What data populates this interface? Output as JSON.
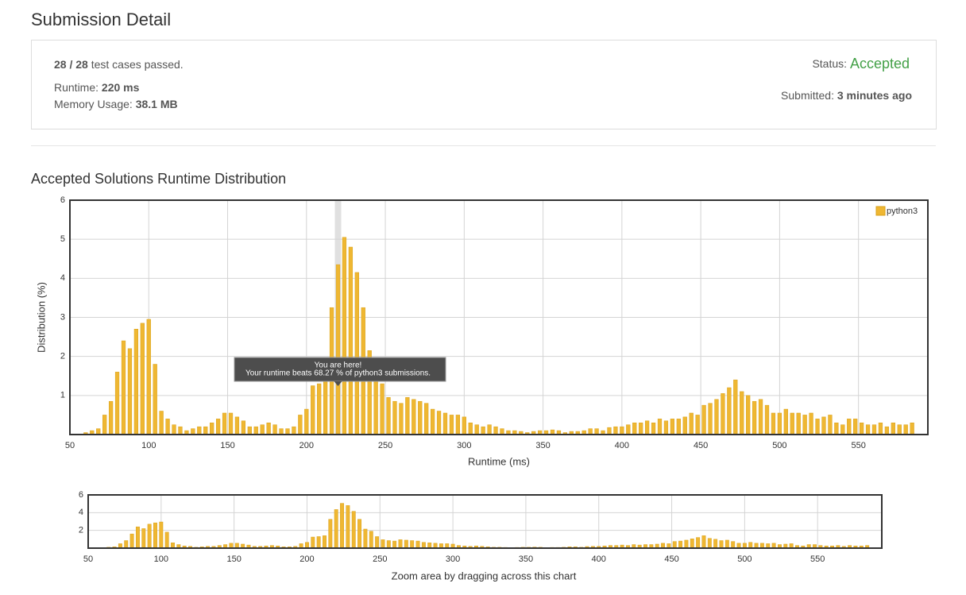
{
  "header": {
    "title": "Submission Detail"
  },
  "summary": {
    "cases": "28 / 28",
    "cases_text": "test cases passed.",
    "runtime_label": "Runtime:",
    "runtime": "220 ms",
    "memory_label": "Memory Usage:",
    "memory": "38.1 MB",
    "status_label": "Status:",
    "status": "Accepted",
    "submitted_label": "Submitted:",
    "submitted": "3 minutes ago"
  },
  "section_title": "Accepted Solutions Runtime Distribution",
  "chart_data": [
    {
      "type": "bar",
      "xlabel": "Runtime (ms)",
      "ylabel": "Distribution (%)",
      "x": [
        60,
        64,
        68,
        72,
        76,
        80,
        84,
        88,
        92,
        96,
        100,
        104,
        108,
        112,
        116,
        120,
        124,
        128,
        132,
        136,
        140,
        144,
        148,
        152,
        156,
        160,
        164,
        168,
        172,
        176,
        180,
        184,
        188,
        192,
        196,
        200,
        204,
        208,
        212,
        216,
        220,
        224,
        228,
        232,
        236,
        240,
        244,
        248,
        252,
        256,
        260,
        264,
        268,
        272,
        276,
        280,
        284,
        288,
        292,
        296,
        300,
        304,
        308,
        312,
        316,
        320,
        324,
        328,
        332,
        336,
        340,
        344,
        348,
        352,
        356,
        360,
        364,
        368,
        372,
        376,
        380,
        384,
        388,
        392,
        396,
        400,
        404,
        408,
        412,
        416,
        420,
        424,
        428,
        432,
        436,
        440,
        444,
        448,
        452,
        456,
        460,
        464,
        468,
        472,
        476,
        480,
        484,
        488,
        492,
        496,
        500,
        504,
        508,
        512,
        516,
        520,
        524,
        528,
        532,
        536,
        540,
        544,
        548,
        552,
        556,
        560,
        564,
        568,
        572,
        576,
        580,
        584
      ],
      "series": [
        {
          "name": "python3",
          "color": "#efb732",
          "values": [
            0.05,
            0.1,
            0.15,
            0.5,
            0.85,
            1.6,
            2.4,
            2.2,
            2.7,
            2.85,
            2.95,
            1.8,
            0.6,
            0.4,
            0.25,
            0.2,
            0.1,
            0.15,
            0.2,
            0.2,
            0.3,
            0.4,
            0.55,
            0.55,
            0.45,
            0.35,
            0.2,
            0.2,
            0.25,
            0.3,
            0.25,
            0.15,
            0.15,
            0.2,
            0.5,
            0.65,
            1.25,
            1.3,
            1.4,
            3.25,
            4.35,
            5.05,
            4.8,
            4.15,
            3.25,
            2.15,
            1.9,
            1.3,
            0.95,
            0.85,
            0.8,
            0.95,
            0.9,
            0.85,
            0.8,
            0.65,
            0.6,
            0.55,
            0.5,
            0.5,
            0.45,
            0.3,
            0.25,
            0.2,
            0.25,
            0.2,
            0.15,
            0.1,
            0.1,
            0.08,
            0.05,
            0.08,
            0.1,
            0.1,
            0.12,
            0.1,
            0.05,
            0.08,
            0.08,
            0.1,
            0.15,
            0.15,
            0.1,
            0.18,
            0.2,
            0.2,
            0.25,
            0.3,
            0.3,
            0.35,
            0.3,
            0.4,
            0.35,
            0.4,
            0.4,
            0.45,
            0.55,
            0.5,
            0.75,
            0.8,
            0.9,
            1.05,
            1.2,
            1.4,
            1.1,
            1.0,
            0.85,
            0.9,
            0.75,
            0.55,
            0.55,
            0.65,
            0.55,
            0.55,
            0.5,
            0.55,
            0.4,
            0.45,
            0.5,
            0.3,
            0.25,
            0.4,
            0.4,
            0.3,
            0.25,
            0.25,
            0.3,
            0.2,
            0.3,
            0.25,
            0.25,
            0.3
          ]
        }
      ],
      "xlim": [
        50,
        594
      ],
      "ylim": [
        0,
        6
      ],
      "xticks": [
        50,
        100,
        150,
        200,
        250,
        300,
        350,
        400,
        450,
        500,
        550
      ],
      "yticks": [
        1,
        2,
        3,
        4,
        5,
        6
      ],
      "grid": true,
      "legend": "upper right",
      "highlight_x": 220,
      "annotation": {
        "title": "You are here!",
        "text": "Your runtime beats 68.27 % of python3 submissions."
      }
    },
    {
      "type": "bar",
      "xlim": [
        50,
        594
      ],
      "ylim": [
        0,
        6
      ],
      "xticks": [
        50,
        100,
        150,
        200,
        250,
        300,
        350,
        400,
        450,
        500,
        550
      ],
      "yticks": [
        2,
        4,
        6
      ],
      "grid": true,
      "caption": "Zoom area by dragging across this chart"
    }
  ]
}
